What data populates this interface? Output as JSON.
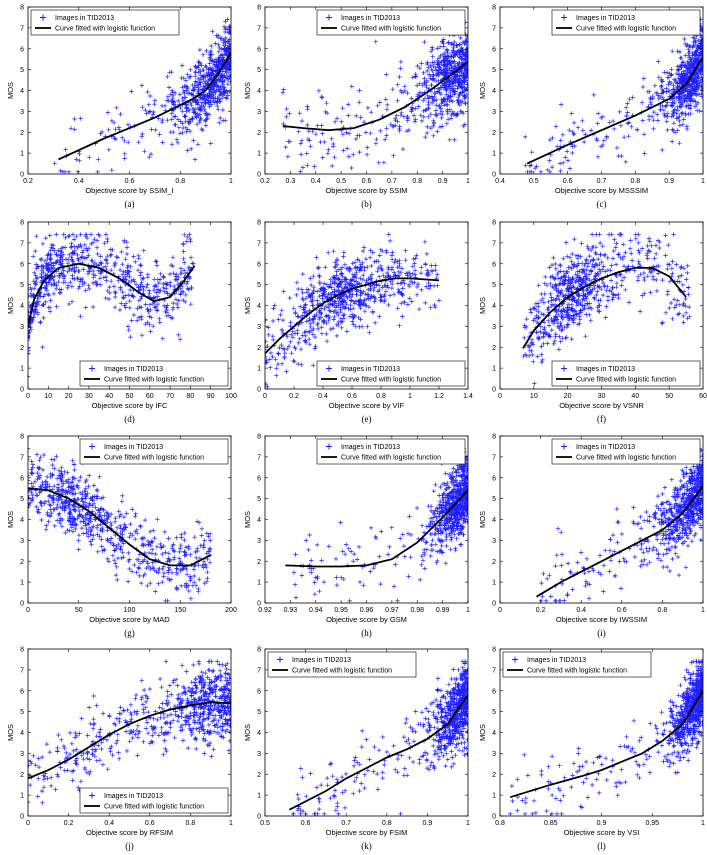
{
  "chart_data": [
    {
      "type": "scatter",
      "panel_label": "(a)",
      "xlabel": "Objective score by SSIM_I",
      "ylabel": "MOS",
      "xlim": [
        0.2,
        1
      ],
      "xticks": [
        0.2,
        0.4,
        0.6,
        0.8,
        1
      ],
      "xtick_labels": [
        "0.2",
        "0.4",
        "0.6",
        "0.8",
        "1"
      ],
      "ylim": [
        0,
        8
      ],
      "yticks": [
        0,
        1,
        2,
        3,
        4,
        5,
        6,
        7,
        8
      ],
      "ytick_labels": [
        "0",
        "1",
        "2",
        "3",
        "4",
        "5",
        "6",
        "7",
        "8"
      ],
      "legend": {
        "scatter": "Images in TID2013",
        "curve": "Curve fitted with logistic function",
        "position": "top-left"
      },
      "series": [
        {
          "name": "Curve fitted with logistic function",
          "x": [
            0.32,
            0.5,
            0.6,
            0.7,
            0.8,
            0.85,
            0.9,
            0.95,
            1.0
          ],
          "y": [
            0.7,
            1.7,
            2.2,
            2.7,
            3.3,
            3.6,
            4.0,
            4.8,
            5.8
          ]
        }
      ],
      "cloud": {
        "x_min": 0.3,
        "x_max": 1.0,
        "x_density_center": 0.88,
        "x_spread": 0.2,
        "x_skew": 0.8,
        "y_spread": 0.85,
        "points": 700
      }
    },
    {
      "type": "scatter",
      "panel_label": "(b)",
      "xlabel": "Objective score by SSIM",
      "ylabel": "MOS",
      "xlim": [
        0.2,
        1
      ],
      "xticks": [
        0.2,
        0.3,
        0.4,
        0.5,
        0.6,
        0.7,
        0.8,
        0.9,
        1
      ],
      "xtick_labels": [
        "0.2",
        "0.3",
        "0.4",
        "0.5",
        "0.6",
        "0.7",
        "0.8",
        "0.9",
        "1"
      ],
      "ylim": [
        0,
        8
      ],
      "yticks": [
        0,
        1,
        2,
        3,
        4,
        5,
        6,
        7,
        8
      ],
      "ytick_labels": [
        "0",
        "1",
        "2",
        "3",
        "4",
        "5",
        "6",
        "7",
        "8"
      ],
      "legend": {
        "scatter": "Images in TID2013",
        "curve": "Curve fitted with logistic function",
        "position": "top-right"
      },
      "series": [
        {
          "name": "Curve fitted with logistic function",
          "x": [
            0.27,
            0.35,
            0.45,
            0.55,
            0.65,
            0.75,
            0.85,
            0.95,
            1.0
          ],
          "y": [
            2.3,
            2.2,
            2.1,
            2.2,
            2.6,
            3.2,
            4.0,
            4.9,
            5.4
          ]
        }
      ],
      "cloud": {
        "x_min": 0.27,
        "x_max": 1.0,
        "x_density_center": 0.88,
        "x_spread": 0.18,
        "x_skew": 0.75,
        "y_spread": 1.0,
        "points": 700
      }
    },
    {
      "type": "scatter",
      "panel_label": "(c)",
      "xlabel": "Objective score by MSSSIM",
      "ylabel": "MOS",
      "xlim": [
        0.4,
        1
      ],
      "xticks": [
        0.4,
        0.5,
        0.6,
        0.7,
        0.8,
        0.9,
        1
      ],
      "xtick_labels": [
        "0.4",
        "0.5",
        "0.6",
        "0.7",
        "0.8",
        "0.9",
        "1"
      ],
      "ylim": [
        0,
        8
      ],
      "yticks": [
        0,
        1,
        2,
        3,
        4,
        5,
        6,
        7,
        8
      ],
      "ytick_labels": [
        "0",
        "1",
        "2",
        "3",
        "4",
        "5",
        "6",
        "7",
        "8"
      ],
      "legend": {
        "scatter": "Images in TID2013",
        "curve": "Curve fitted with logistic function",
        "position": "top-right"
      },
      "series": [
        {
          "name": "Curve fitted with logistic function",
          "x": [
            0.48,
            0.6,
            0.7,
            0.8,
            0.85,
            0.9,
            0.95,
            1.0
          ],
          "y": [
            0.5,
            1.4,
            2.1,
            2.8,
            3.2,
            3.6,
            4.3,
            5.6
          ]
        }
      ],
      "cloud": {
        "x_min": 0.47,
        "x_max": 1.0,
        "x_density_center": 0.93,
        "x_spread": 0.1,
        "x_skew": 0.8,
        "y_spread": 0.85,
        "points": 700
      }
    },
    {
      "type": "scatter",
      "panel_label": "(d)",
      "xlabel": "Objective score by IFC",
      "ylabel": "MOS",
      "xlim": [
        0,
        100
      ],
      "xticks": [
        0,
        10,
        20,
        30,
        40,
        50,
        60,
        70,
        80,
        90,
        100
      ],
      "xtick_labels": [
        "0",
        "10",
        "20",
        "30",
        "40",
        "50",
        "60",
        "70",
        "80",
        "90",
        "100"
      ],
      "ylim": [
        0,
        8
      ],
      "yticks": [
        0,
        1,
        2,
        3,
        4,
        5,
        6,
        7,
        8
      ],
      "ytick_labels": [
        "0",
        "1",
        "2",
        "3",
        "4",
        "5",
        "6",
        "7",
        "8"
      ],
      "legend": {
        "scatter": "Images in TID2013",
        "curve": "Curve fitted with logistic function",
        "position": "bottom-right"
      },
      "series": [
        {
          "name": "Curve fitted with logistic function",
          "x": [
            0,
            3,
            8,
            15,
            25,
            35,
            45,
            55,
            62,
            70,
            77,
            82
          ],
          "y": [
            3.0,
            4.3,
            5.2,
            5.8,
            6.0,
            5.8,
            5.3,
            4.6,
            4.2,
            4.4,
            5.2,
            5.9
          ]
        }
      ],
      "cloud": {
        "x_min": 0,
        "x_max": 82,
        "x_density_center": 6,
        "x_spread": 14,
        "x_skew": 0.3,
        "y_spread": 0.85,
        "points": 700
      }
    },
    {
      "type": "scatter",
      "panel_label": "(e)",
      "xlabel": "Objective score by VIF",
      "ylabel": "MOS",
      "xlim": [
        0,
        1.4
      ],
      "xticks": [
        0,
        0.2,
        0.4,
        0.6,
        0.8,
        1,
        1.2,
        1.4
      ],
      "xtick_labels": [
        "0",
        "0.2",
        "0.4",
        "0.6",
        "0.8",
        "1",
        "1.2",
        "1.4"
      ],
      "ylim": [
        0,
        8
      ],
      "yticks": [
        0,
        1,
        2,
        3,
        4,
        5,
        6,
        7,
        8
      ],
      "ytick_labels": [
        "0",
        "1",
        "2",
        "3",
        "4",
        "5",
        "6",
        "7",
        "8"
      ],
      "legend": {
        "scatter": "Images in TID2013",
        "curve": "Curve fitted with logistic function",
        "position": "bottom-right"
      },
      "series": [
        {
          "name": "Curve fitted with logistic function",
          "x": [
            0,
            0.1,
            0.2,
            0.3,
            0.4,
            0.5,
            0.6,
            0.7,
            0.8,
            0.9,
            1.0,
            1.1,
            1.2
          ],
          "y": [
            1.7,
            2.4,
            3.0,
            3.6,
            4.1,
            4.5,
            4.8,
            5.0,
            5.2,
            5.3,
            5.3,
            5.25,
            5.2
          ]
        }
      ],
      "cloud": {
        "x_min": 0,
        "x_max": 1.2,
        "x_density_center": 0.5,
        "x_spread": 0.3,
        "x_skew": 0.5,
        "y_spread": 0.9,
        "points": 700
      }
    },
    {
      "type": "scatter",
      "panel_label": "(f)",
      "xlabel": "Objective score by VSNR",
      "ylabel": "MOS",
      "xlim": [
        0,
        60
      ],
      "xticks": [
        0,
        10,
        20,
        30,
        40,
        50,
        60
      ],
      "xtick_labels": [
        "0",
        "10",
        "20",
        "30",
        "40",
        "50",
        "60"
      ],
      "ylim": [
        0,
        8
      ],
      "yticks": [
        0,
        1,
        2,
        3,
        4,
        5,
        6,
        7,
        8
      ],
      "ytick_labels": [
        "0",
        "1",
        "2",
        "3",
        "4",
        "5",
        "6",
        "7",
        "8"
      ],
      "legend": {
        "scatter": "Images in TID2013",
        "curve": "Curve fitted with logistic function",
        "position": "bottom-right"
      },
      "series": [
        {
          "name": "Curve fitted with logistic function",
          "x": [
            7,
            10,
            15,
            20,
            25,
            30,
            35,
            40,
            45,
            50,
            55
          ],
          "y": [
            2.0,
            2.8,
            3.7,
            4.4,
            4.9,
            5.3,
            5.6,
            5.8,
            5.8,
            5.4,
            4.4
          ]
        }
      ],
      "cloud": {
        "x_min": 7,
        "x_max": 56,
        "x_density_center": 22,
        "x_spread": 9,
        "x_skew": 0.5,
        "y_spread": 1.0,
        "points": 700
      }
    },
    {
      "type": "scatter",
      "panel_label": "(g)",
      "xlabel": "Objective score by MAD",
      "ylabel": "MOS",
      "xlim": [
        0,
        200
      ],
      "xticks": [
        0,
        50,
        100,
        150,
        200
      ],
      "xtick_labels": [
        "0",
        "50",
        "100",
        "150",
        "200"
      ],
      "ylim": [
        0,
        8
      ],
      "yticks": [
        0,
        1,
        2,
        3,
        4,
        5,
        6,
        7,
        8
      ],
      "ytick_labels": [
        "0",
        "1",
        "2",
        "3",
        "4",
        "5",
        "6",
        "7",
        "8"
      ],
      "legend": {
        "scatter": "Images in TID2013",
        "curve": "Curve fitted with logistic function",
        "position": "top-right"
      },
      "series": [
        {
          "name": "Curve fitted with logistic function",
          "x": [
            0,
            20,
            40,
            60,
            80,
            100,
            120,
            140,
            160,
            180
          ],
          "y": [
            5.5,
            5.4,
            5.0,
            4.4,
            3.6,
            2.8,
            2.1,
            1.8,
            1.8,
            2.3
          ]
        }
      ],
      "cloud": {
        "x_min": 0,
        "x_max": 180,
        "x_density_center": 45,
        "x_spread": 40,
        "x_skew": 0.4,
        "y_spread": 0.8,
        "points": 700
      }
    },
    {
      "type": "scatter",
      "panel_label": "(h)",
      "xlabel": "Objective score by GSM",
      "ylabel": "MOS",
      "xlim": [
        0.92,
        1
      ],
      "xticks": [
        0.92,
        0.93,
        0.94,
        0.95,
        0.96,
        0.97,
        0.98,
        0.99,
        1
      ],
      "xtick_labels": [
        "0.92",
        "0.93",
        "0.94",
        "0.95",
        "0.96",
        "0.97",
        "0.98",
        "0.99",
        "1"
      ],
      "ylim": [
        0,
        8
      ],
      "yticks": [
        0,
        1,
        2,
        3,
        4,
        5,
        6,
        7,
        8
      ],
      "ytick_labels": [
        "0",
        "1",
        "2",
        "3",
        "4",
        "5",
        "6",
        "7",
        "8"
      ],
      "legend": {
        "scatter": "Images in TID2013",
        "curve": "Curve fitted with logistic function",
        "position": "top-right"
      },
      "series": [
        {
          "name": "Curve fitted with logistic function",
          "x": [
            0.928,
            0.94,
            0.95,
            0.96,
            0.97,
            0.98,
            0.99,
            1.0
          ],
          "y": [
            1.8,
            1.75,
            1.75,
            1.8,
            2.1,
            2.9,
            4.1,
            5.4
          ]
        }
      ],
      "cloud": {
        "x_min": 0.93,
        "x_max": 1.0,
        "x_density_center": 0.99,
        "x_spread": 0.012,
        "x_skew": 0.85,
        "y_spread": 0.9,
        "points": 700
      }
    },
    {
      "type": "scatter",
      "panel_label": "(i)",
      "xlabel": "Objective score by IWSSIM",
      "ylabel": "MOS",
      "xlim": [
        0,
        1
      ],
      "xticks": [
        0,
        0.2,
        0.4,
        0.6,
        0.8,
        1
      ],
      "xtick_labels": [
        "0",
        "0.2",
        "0.4",
        "0.6",
        "0.8",
        "1"
      ],
      "ylim": [
        0,
        8
      ],
      "yticks": [
        0,
        1,
        2,
        3,
        4,
        5,
        6,
        7,
        8
      ],
      "ytick_labels": [
        "0",
        "1",
        "2",
        "3",
        "4",
        "5",
        "6",
        "7",
        "8"
      ],
      "legend": {
        "scatter": "Images in TID2013",
        "curve": "Curve fitted with logistic function",
        "position": "top-right"
      },
      "series": [
        {
          "name": "Curve fitted with logistic function",
          "x": [
            0.18,
            0.3,
            0.4,
            0.5,
            0.6,
            0.7,
            0.8,
            0.9,
            1.0
          ],
          "y": [
            0.3,
            1.0,
            1.5,
            2.0,
            2.5,
            3.0,
            3.5,
            4.3,
            5.6
          ]
        }
      ],
      "cloud": {
        "x_min": 0.2,
        "x_max": 1.0,
        "x_density_center": 0.88,
        "x_spread": 0.2,
        "x_skew": 0.8,
        "y_spread": 0.85,
        "points": 700
      }
    },
    {
      "type": "scatter",
      "panel_label": "(j)",
      "xlabel": "Objective score by RFSIM",
      "ylabel": "MOS",
      "xlim": [
        0,
        1
      ],
      "xticks": [
        0,
        0.2,
        0.4,
        0.6,
        0.8,
        1
      ],
      "xtick_labels": [
        "0",
        "0.2",
        "0.4",
        "0.6",
        "0.8",
        "1"
      ],
      "ylim": [
        0,
        8
      ],
      "yticks": [
        0,
        1,
        2,
        3,
        4,
        5,
        6,
        7,
        8
      ],
      "ytick_labels": [
        "0",
        "1",
        "2",
        "3",
        "4",
        "5",
        "6",
        "7",
        "8"
      ],
      "legend": {
        "scatter": "Images in TID2013",
        "curve": "Curve fitted with logistic function",
        "position": "bottom-right"
      },
      "series": [
        {
          "name": "Curve fitted with logistic function",
          "x": [
            0,
            0.1,
            0.2,
            0.3,
            0.4,
            0.5,
            0.6,
            0.7,
            0.8,
            0.9,
            1.0
          ],
          "y": [
            1.8,
            2.2,
            2.7,
            3.3,
            3.9,
            4.4,
            4.8,
            5.1,
            5.3,
            5.45,
            5.4
          ]
        }
      ],
      "cloud": {
        "x_min": 0,
        "x_max": 1.0,
        "x_density_center": 0.6,
        "x_spread": 0.3,
        "x_skew": 0.55,
        "y_spread": 0.85,
        "points": 700
      }
    },
    {
      "type": "scatter",
      "panel_label": "(k)",
      "xlabel": "Objective score by FSIM",
      "ylabel": "MOS",
      "xlim": [
        0.5,
        1
      ],
      "xticks": [
        0.5,
        0.6,
        0.7,
        0.8,
        0.9,
        1
      ],
      "xtick_labels": [
        "0.5",
        "0.6",
        "0.7",
        "0.8",
        "0.9",
        "1"
      ],
      "ylim": [
        0,
        8
      ],
      "yticks": [
        0,
        1,
        2,
        3,
        4,
        5,
        6,
        7,
        8
      ],
      "ytick_labels": [
        "0",
        "1",
        "2",
        "3",
        "4",
        "5",
        "6",
        "7",
        "8"
      ],
      "legend": {
        "scatter": "Images in TID2013",
        "curve": "Curve fitted with logistic function",
        "position": "top-left"
      },
      "series": [
        {
          "name": "Curve fitted with logistic function",
          "x": [
            0.56,
            0.65,
            0.7,
            0.75,
            0.8,
            0.85,
            0.9,
            0.95,
            1.0
          ],
          "y": [
            0.3,
            1.2,
            1.8,
            2.3,
            2.8,
            3.2,
            3.7,
            4.4,
            5.8
          ]
        }
      ],
      "cloud": {
        "x_min": 0.56,
        "x_max": 1.0,
        "x_density_center": 0.93,
        "x_spread": 0.08,
        "x_skew": 0.8,
        "y_spread": 0.85,
        "points": 700
      }
    },
    {
      "type": "scatter",
      "panel_label": "(l)",
      "xlabel": "Objective score by VSI",
      "ylabel": "MOS",
      "xlim": [
        0.8,
        1
      ],
      "xticks": [
        0.8,
        0.85,
        0.9,
        0.95,
        1
      ],
      "xtick_labels": [
        "0.8",
        "0.85",
        "0.9",
        "0.95",
        "1"
      ],
      "ylim": [
        0,
        8
      ],
      "yticks": [
        0,
        1,
        2,
        3,
        4,
        5,
        6,
        7,
        8
      ],
      "ytick_labels": [
        "0",
        "1",
        "2",
        "3",
        "4",
        "5",
        "6",
        "7",
        "8"
      ],
      "legend": {
        "scatter": "Images in TID2013",
        "curve": "Curve fitted with logistic function",
        "position": "top-left"
      },
      "series": [
        {
          "name": "Curve fitted with logistic function",
          "x": [
            0.81,
            0.85,
            0.88,
            0.9,
            0.92,
            0.94,
            0.96,
            0.98,
            1.0
          ],
          "y": [
            0.9,
            1.5,
            1.9,
            2.2,
            2.6,
            3.0,
            3.6,
            4.4,
            6.0
          ]
        }
      ],
      "cloud": {
        "x_min": 0.81,
        "x_max": 1.0,
        "x_density_center": 0.97,
        "x_spread": 0.03,
        "x_skew": 0.85,
        "y_spread": 0.85,
        "points": 700
      }
    }
  ],
  "colors": {
    "scatter": "#1f1fff",
    "curve": "#000000",
    "axis": "#000000"
  }
}
